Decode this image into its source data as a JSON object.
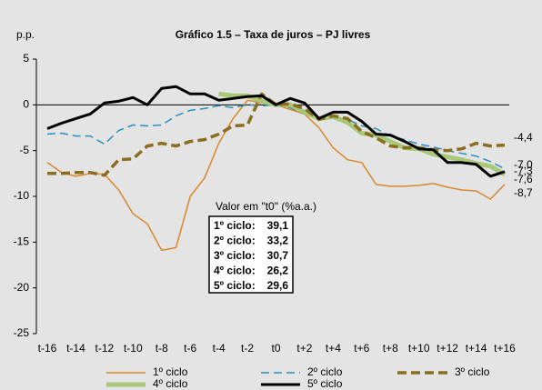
{
  "chart_data": {
    "type": "line",
    "title": "Gráfico 1.5 – Taxa de juros – PJ livres",
    "ylabel": "p.p.",
    "categories": [
      "t-16",
      null,
      "t-14",
      null,
      "t-12",
      null,
      "t-10",
      null,
      "t-8",
      null,
      "t-6",
      null,
      "t-4",
      null,
      "t-2",
      null,
      "t0",
      null,
      "t+2",
      null,
      "t+4",
      null,
      "t+6",
      null,
      "t+8",
      null,
      "t+10",
      null,
      "t+12",
      null,
      "t+14",
      null,
      "t+16"
    ],
    "ylim": [
      -25,
      5
    ],
    "yticks": [
      -25,
      -20,
      -15,
      -10,
      -5,
      0,
      5
    ],
    "series": [
      {
        "name": "1º ciclo",
        "color": "#d8882a",
        "end_label": "-8,7",
        "values": [
          -6.3,
          -7.4,
          -7.8,
          -7.5,
          -7.6,
          -9.3,
          -11.9,
          -13.0,
          -15.9,
          -15.6,
          -10.0,
          -8.0,
          -4.2,
          -1.5,
          0.5,
          0.2,
          0,
          -0.5,
          -1.0,
          -2.5,
          -4.7,
          -6.0,
          -6.3,
          -8.7,
          -8.9,
          -8.9,
          -8.8,
          -8.6,
          -9.0,
          -9.3,
          -9.4,
          -10.3,
          -8.7
        ]
      },
      {
        "name": "2º ciclo",
        "color": "#2a8fc0",
        "end_label": "-7,0",
        "values": [
          -3.2,
          -3.1,
          -3.4,
          -3.4,
          -4.3,
          -2.8,
          -2.2,
          -2.3,
          -2.2,
          -1.2,
          -0.6,
          -0.4,
          -0.1,
          -0.3,
          0.0,
          -0.1,
          0,
          -0.3,
          -1.0,
          -1.5,
          -1.5,
          -1.6,
          -2.3,
          -2.6,
          -3.4,
          -3.8,
          -4.3,
          -4.6,
          -5.0,
          -5.3,
          -5.6,
          -6.2,
          -7.0
        ]
      },
      {
        "name": "3º ciclo",
        "color": "#8a6d1e",
        "end_label": "-4,4",
        "values": [
          -7.5,
          -7.5,
          -7.4,
          -7.4,
          -7.7,
          -6.0,
          -5.9,
          -4.5,
          -4.2,
          -4.5,
          -4.0,
          -3.8,
          -3.2,
          -2.3,
          -2.2,
          1.2,
          0,
          0.1,
          -0.4,
          -1.6,
          -1.2,
          -1.5,
          -2.9,
          -3.6,
          -4.5,
          -4.7,
          -4.7,
          -4.9,
          -5.0,
          -4.8,
          -4.2,
          -4.5,
          -4.4
        ]
      },
      {
        "name": "4º ciclo",
        "color": "#a8c878",
        "end_label": "-7,6",
        "values": [
          null,
          null,
          null,
          null,
          null,
          null,
          null,
          null,
          null,
          null,
          null,
          null,
          1.2,
          1.0,
          1.0,
          0.4,
          0,
          0.0,
          -0.8,
          -1.5,
          -1.3,
          -1.9,
          -3.1,
          -3.3,
          -4.0,
          -4.7,
          -4.8,
          -5.4,
          -5.7,
          -6.0,
          -6.4,
          -6.7,
          -7.6
        ]
      },
      {
        "name": "5º ciclo",
        "color": "#000000",
        "end_label": "-7,3",
        "values": [
          -2.6,
          -2.0,
          -1.5,
          -1.0,
          0.2,
          0.4,
          0.8,
          0.0,
          1.8,
          2.0,
          1.2,
          1.2,
          0.5,
          0.7,
          0.9,
          1.0,
          0,
          0.7,
          0.2,
          -1.5,
          -0.8,
          -0.8,
          -1.8,
          -3.2,
          -3.3,
          -4.0,
          -4.8,
          -4.9,
          -6.3,
          -6.3,
          -6.5,
          -7.8,
          -7.3
        ]
      }
    ],
    "inset": {
      "title": "Valor em \"t0\" (%a.a.)",
      "rows": [
        {
          "label": "1º ciclo:",
          "value": "39,1"
        },
        {
          "label": "2º ciclo:",
          "value": "33,2"
        },
        {
          "label": "3º ciclo:",
          "value": "30,7"
        },
        {
          "label": "4º ciclo:",
          "value": "26,2"
        },
        {
          "label": "5º ciclo:",
          "value": "29,6"
        }
      ]
    }
  }
}
